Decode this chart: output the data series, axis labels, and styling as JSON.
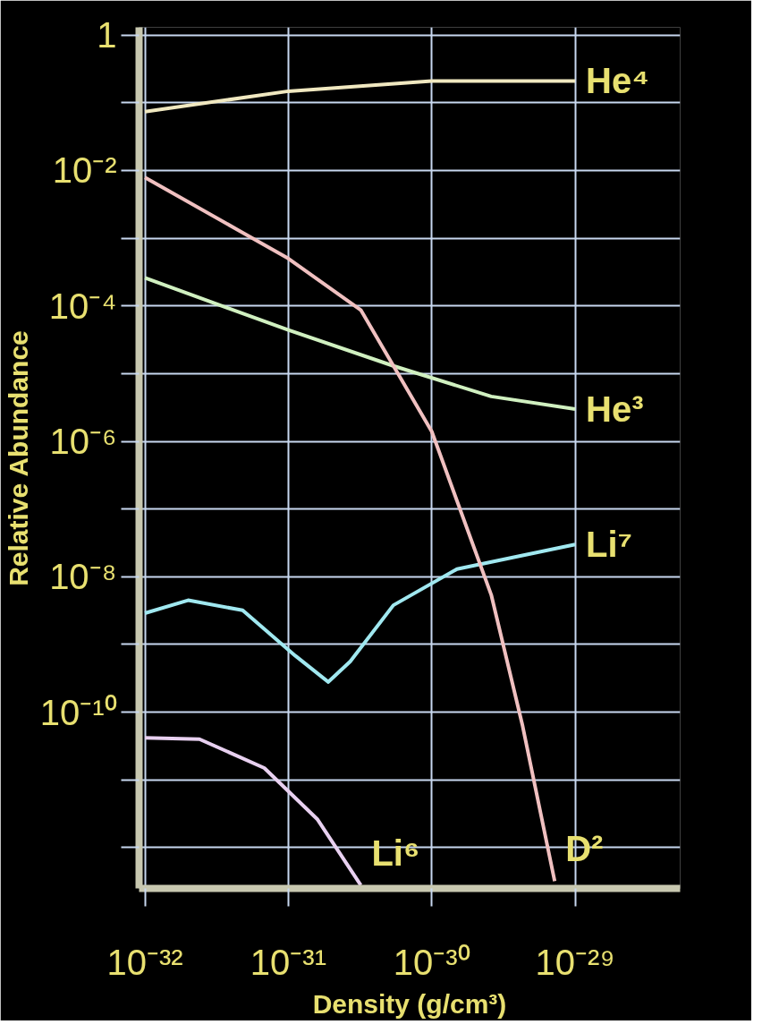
{
  "chart_data": {
    "type": "line",
    "xlabel": "Density (g/cm³)",
    "ylabel": "Relative Abundance",
    "log": "xy",
    "grid": true,
    "legend": false,
    "marker": "none",
    "line_style": "solid",
    "xlim": [
      9.1e-33,
      5.4e-29
    ],
    "ylim": [
      2.5e-13,
      1.3
    ],
    "xticks": [
      {
        "value": 1e-32,
        "label": "10⁻³²"
      },
      {
        "value": 1e-31,
        "label": "10⁻³¹"
      },
      {
        "value": 1e-30,
        "label": "10⁻³⁰"
      },
      {
        "value": 1e-29,
        "label": "10⁻²⁹"
      }
    ],
    "yticks": [
      1,
      {
        "value": 0.1,
        "label": null
      },
      {
        "value": 0.01,
        "label": "10⁻²"
      },
      {
        "value": 0.001,
        "label": null
      },
      {
        "value": 0.0001,
        "label": "10⁻⁴"
      },
      {
        "value": 1e-05,
        "label": null
      },
      {
        "value": 1e-06,
        "label": "10⁻⁶"
      },
      {
        "value": 1e-07,
        "label": null
      },
      {
        "value": 1e-08,
        "label": "10⁻⁸"
      },
      {
        "value": 1e-09,
        "label": null
      },
      {
        "value": 1e-10,
        "label": "10⁻¹⁰"
      },
      {
        "value": 1e-11,
        "label": null
      },
      {
        "value": 1e-12,
        "label": null
      }
    ],
    "series": [
      {
        "name": "He⁴",
        "color": "#f0e8c0",
        "x": [
          1e-32,
          1e-31,
          1e-30,
          1e-29
        ],
        "values": [
          0.074,
          0.148,
          0.21,
          0.21
        ]
      },
      {
        "name": "He³",
        "color": "#d0f0c0",
        "x": [
          1e-32,
          1e-31,
          5.4e-31,
          2.6e-30,
          1e-29
        ],
        "values": [
          0.00026,
          4.4e-05,
          1.3e-05,
          4.6e-06,
          3e-06
        ]
      },
      {
        "name": "Li⁷",
        "color": "#a0e8f0",
        "x": [
          1e-32,
          2e-32,
          4.8e-32,
          1.12e-31,
          1.9e-31,
          2.7e-31,
          5.4e-31,
          1.5e-30,
          1e-29
        ],
        "values": [
          2.9e-09,
          4.5e-09,
          3.2e-09,
          6.8e-10,
          2.8e-10,
          5.6e-10,
          3.8e-09,
          1.3e-08,
          3e-08
        ]
      },
      {
        "name": "Li⁶",
        "color": "#e8d0f0",
        "x": [
          1e-32,
          2.4e-32,
          6.8e-32,
          1.6e-31,
          3.2e-31
        ],
        "values": [
          4.2e-11,
          4e-11,
          1.5e-11,
          2.6e-12,
          2.8e-13
        ]
      },
      {
        "name": "D²",
        "color": "#f0c0c0",
        "x": [
          1e-32,
          1e-31,
          3.2e-31,
          1e-30,
          2.6e-30,
          4.3e-30,
          7.2e-30
        ],
        "values": [
          0.0079,
          0.0005,
          8.7e-05,
          1.4e-06,
          5.4e-09,
          6.3e-11,
          3.2e-13
        ]
      }
    ]
  }
}
